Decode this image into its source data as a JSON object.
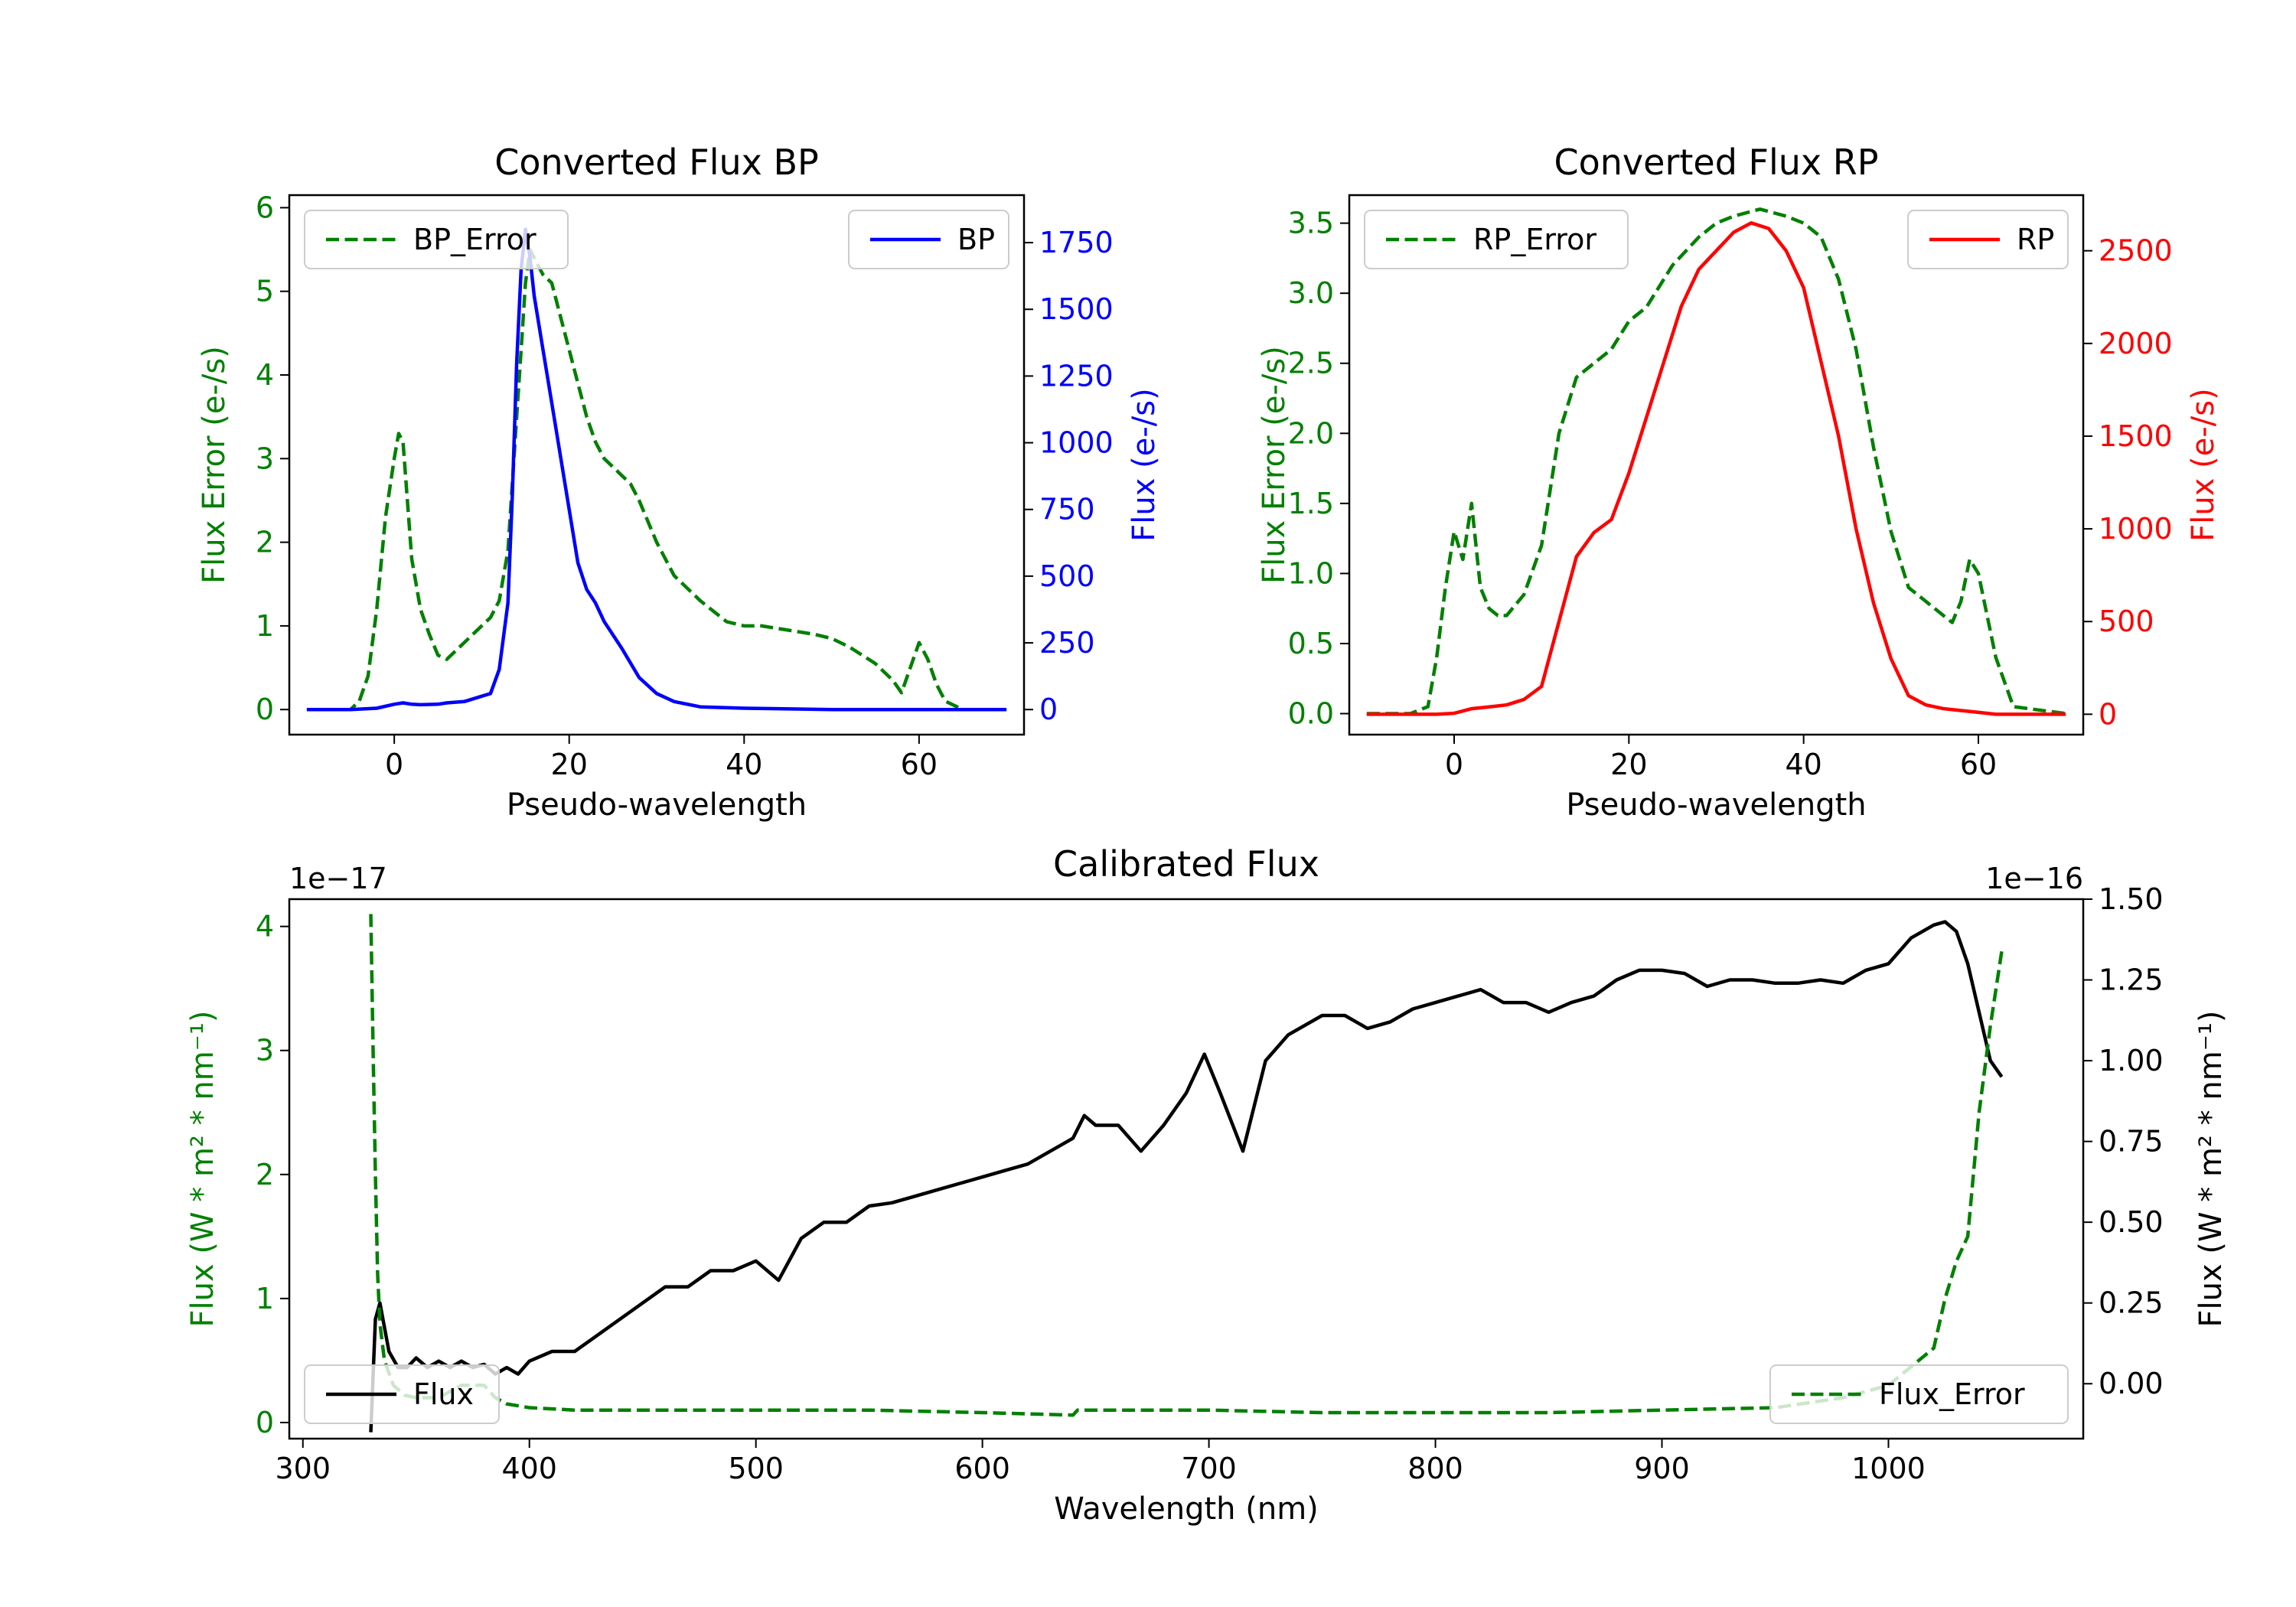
{
  "chart_data": [
    {
      "type": "line",
      "title": "Converted Flux BP",
      "xlabel": "Pseudo-wavelength",
      "xlim": [
        -12,
        72
      ],
      "xticks": [
        0,
        20,
        40,
        60
      ],
      "left_axis": {
        "label": "Flux Error (e-/s)",
        "color": "#008000",
        "ylim": [
          -0.3,
          6.15
        ],
        "ticks": [
          0,
          1,
          2,
          3,
          4,
          5,
          6
        ]
      },
      "right_axis": {
        "label": "Flux (e-/s)",
        "color": "#0000ff",
        "ylim": [
          -94,
          1928
        ],
        "ticks": [
          0,
          250,
          500,
          750,
          1000,
          1250,
          1500,
          1750
        ]
      },
      "series": [
        {
          "name": "BP_Error",
          "axis": "left",
          "color": "#008000",
          "dashed": true,
          "x": [
            -10,
            -5,
            -4,
            -3,
            -2,
            -1,
            0,
            0.5,
            1,
            1.5,
            2,
            2.5,
            3,
            4,
            5,
            6,
            7,
            8,
            9,
            10,
            11,
            12,
            13,
            14,
            14.5,
            15,
            15.5,
            16,
            17,
            18,
            19,
            20,
            21,
            22,
            23,
            24,
            25,
            26,
            27,
            28,
            30,
            32,
            35,
            38,
            40,
            42,
            45,
            48,
            50,
            52,
            55,
            57,
            58,
            59,
            60,
            61,
            62,
            63,
            65,
            70
          ],
          "y": [
            0,
            0,
            0.1,
            0.4,
            1.2,
            2.3,
            3.0,
            3.3,
            3.2,
            2.5,
            1.8,
            1.5,
            1.2,
            0.9,
            0.65,
            0.6,
            0.7,
            0.8,
            0.9,
            1.0,
            1.1,
            1.3,
            1.9,
            3.5,
            4.3,
            5.1,
            5.5,
            5.4,
            5.2,
            5.1,
            4.7,
            4.3,
            3.9,
            3.5,
            3.2,
            3.0,
            2.9,
            2.8,
            2.7,
            2.5,
            2.0,
            1.6,
            1.3,
            1.05,
            1.0,
            1.0,
            0.95,
            0.9,
            0.85,
            0.75,
            0.55,
            0.35,
            0.2,
            0.5,
            0.8,
            0.6,
            0.3,
            0.1,
            0.0,
            0.0
          ]
        },
        {
          "name": "BP",
          "axis": "right",
          "color": "#0000ff",
          "dashed": false,
          "x": [
            -10,
            -5,
            -2,
            0,
            1,
            2,
            3,
            5,
            6,
            8,
            10,
            11,
            12,
            13,
            13.5,
            14,
            14.5,
            15,
            15.5,
            16,
            17,
            18,
            19,
            20,
            21,
            22,
            23,
            24,
            26,
            28,
            30,
            32,
            35,
            40,
            50,
            60,
            70
          ],
          "y": [
            0,
            0,
            5,
            20,
            25,
            20,
            18,
            20,
            25,
            30,
            50,
            60,
            150,
            400,
            800,
            1300,
            1650,
            1800,
            1700,
            1550,
            1350,
            1150,
            950,
            750,
            550,
            450,
            400,
            330,
            230,
            120,
            60,
            30,
            10,
            5,
            0,
            0,
            0
          ]
        }
      ],
      "legend": [
        {
          "label": "BP_Error",
          "placement": "upper-left"
        },
        {
          "label": "BP",
          "placement": "upper-right"
        }
      ]
    },
    {
      "type": "line",
      "title": "Converted Flux RP",
      "xlabel": "Pseudo-wavelength",
      "xlim": [
        -12,
        72
      ],
      "xticks": [
        0,
        20,
        40,
        60
      ],
      "left_axis": {
        "label": "Flux Error (e-/s)",
        "color": "#008000",
        "ylim": [
          -0.15,
          3.7
        ],
        "ticks": [
          0.0,
          0.5,
          1.0,
          1.5,
          2.0,
          2.5,
          3.0,
          3.5
        ]
      },
      "right_axis": {
        "label": "Flux (e-/s)",
        "color": "#ff0000",
        "ylim": [
          -110,
          2800
        ],
        "ticks": [
          0,
          500,
          1000,
          1500,
          2000,
          2500
        ]
      },
      "series": [
        {
          "name": "RP_Error",
          "axis": "left",
          "color": "#008000",
          "dashed": true,
          "x": [
            -10,
            -5,
            -3,
            -2,
            -1,
            0,
            1,
            2,
            3,
            4,
            5,
            6,
            8,
            10,
            12,
            14,
            16,
            18,
            20,
            22,
            25,
            28,
            30,
            32,
            35,
            38,
            40,
            42,
            44,
            46,
            48,
            50,
            52,
            54,
            56,
            57,
            58,
            59,
            60,
            62,
            64,
            70
          ],
          "y": [
            0,
            0,
            0.05,
            0.4,
            0.9,
            1.3,
            1.1,
            1.5,
            0.9,
            0.75,
            0.7,
            0.7,
            0.85,
            1.2,
            2.0,
            2.4,
            2.5,
            2.6,
            2.8,
            2.9,
            3.2,
            3.4,
            3.5,
            3.55,
            3.6,
            3.55,
            3.5,
            3.4,
            3.1,
            2.6,
            1.9,
            1.3,
            0.9,
            0.8,
            0.7,
            0.65,
            0.8,
            1.1,
            1.0,
            0.4,
            0.05,
            0.0
          ]
        },
        {
          "name": "RP",
          "axis": "right",
          "color": "#ff0000",
          "dashed": false,
          "x": [
            -10,
            -2,
            0,
            2,
            4,
            6,
            8,
            10,
            12,
            14,
            16,
            18,
            20,
            22,
            24,
            26,
            28,
            30,
            32,
            34,
            36,
            38,
            40,
            42,
            44,
            46,
            48,
            50,
            52,
            54,
            56,
            58,
            60,
            62,
            65,
            70
          ],
          "y": [
            0,
            0,
            5,
            30,
            40,
            50,
            80,
            150,
            500,
            850,
            980,
            1050,
            1300,
            1600,
            1900,
            2200,
            2400,
            2500,
            2600,
            2650,
            2620,
            2500,
            2300,
            1900,
            1500,
            1000,
            600,
            300,
            100,
            50,
            30,
            20,
            10,
            0,
            0,
            0
          ]
        }
      ],
      "legend": [
        {
          "label": "RP_Error",
          "placement": "upper-left"
        },
        {
          "label": "RP",
          "placement": "upper-right"
        }
      ]
    },
    {
      "type": "line",
      "title": "Calibrated Flux",
      "xlabel": "Wavelength (nm)",
      "xlim": [
        294,
        1086
      ],
      "xticks": [
        300,
        400,
        500,
        600,
        700,
        800,
        900,
        1000
      ],
      "left_axis": {
        "label": "Flux (W * m^2 * nm^-1)",
        "label_display": "Flux (W * m² * nm⁻¹)",
        "color": "#008000",
        "offset_text": "1e−17",
        "ylim": [
          -0.13,
          4.22
        ],
        "ticks": [
          0,
          1,
          2,
          3,
          4
        ]
      },
      "right_axis": {
        "label": "Flux (W * m^2 * nm^-1)",
        "label_display": "Flux (W * m² * nm⁻¹)",
        "color": "#000000",
        "offset_text": "1e−16",
        "ylim": [
          -0.17,
          1.5
        ],
        "ticks": [
          0.0,
          0.25,
          0.5,
          0.75,
          1.0,
          1.25,
          1.5
        ]
      },
      "series": [
        {
          "name": "Flux",
          "axis": "right",
          "color": "#000000",
          "dashed": false,
          "x": [
            330,
            332,
            334,
            338,
            342,
            346,
            350,
            355,
            360,
            365,
            370,
            375,
            380,
            385,
            390,
            395,
            400,
            410,
            420,
            430,
            440,
            450,
            460,
            470,
            480,
            490,
            500,
            510,
            520,
            530,
            540,
            550,
            560,
            570,
            580,
            590,
            600,
            610,
            620,
            630,
            640,
            645,
            650,
            660,
            670,
            680,
            690,
            698,
            705,
            715,
            725,
            735,
            750,
            760,
            770,
            780,
            790,
            800,
            810,
            820,
            830,
            840,
            850,
            860,
            870,
            880,
            890,
            900,
            910,
            920,
            930,
            940,
            950,
            960,
            970,
            980,
            990,
            1000,
            1010,
            1020,
            1025,
            1030,
            1035,
            1040,
            1045,
            1050
          ],
          "y": [
            -0.15,
            0.2,
            0.25,
            0.1,
            0.05,
            0.05,
            0.08,
            0.05,
            0.07,
            0.05,
            0.07,
            0.05,
            0.06,
            0.03,
            0.05,
            0.03,
            0.07,
            0.1,
            0.1,
            0.15,
            0.2,
            0.25,
            0.3,
            0.3,
            0.35,
            0.35,
            0.38,
            0.32,
            0.45,
            0.5,
            0.5,
            0.55,
            0.56,
            0.58,
            0.6,
            0.62,
            0.64,
            0.66,
            0.68,
            0.72,
            0.76,
            0.83,
            0.8,
            0.8,
            0.72,
            0.8,
            0.9,
            1.02,
            0.9,
            0.72,
            1.0,
            1.08,
            1.14,
            1.14,
            1.1,
            1.12,
            1.16,
            1.18,
            1.2,
            1.22,
            1.18,
            1.18,
            1.15,
            1.18,
            1.2,
            1.25,
            1.28,
            1.28,
            1.27,
            1.23,
            1.25,
            1.25,
            1.24,
            1.24,
            1.25,
            1.24,
            1.28,
            1.3,
            1.38,
            1.42,
            1.43,
            1.4,
            1.3,
            1.15,
            1.0,
            0.95
          ]
        },
        {
          "name": "Flux_Error",
          "axis": "left",
          "color": "#008000",
          "dashed": true,
          "x": [
            330,
            331,
            332,
            333,
            334,
            336,
            340,
            345,
            350,
            360,
            370,
            380,
            385,
            390,
            400,
            420,
            450,
            500,
            550,
            600,
            640,
            642,
            650,
            700,
            750,
            800,
            850,
            900,
            950,
            980,
            1000,
            1010,
            1020,
            1025,
            1030,
            1035,
            1040,
            1045,
            1050
          ],
          "y": [
            4.1,
            3.0,
            2.0,
            1.2,
            0.8,
            0.5,
            0.3,
            0.22,
            0.2,
            0.2,
            0.3,
            0.3,
            0.2,
            0.15,
            0.12,
            0.1,
            0.1,
            0.1,
            0.1,
            0.08,
            0.06,
            0.1,
            0.1,
            0.1,
            0.08,
            0.08,
            0.08,
            0.1,
            0.12,
            0.2,
            0.3,
            0.45,
            0.6,
            1.0,
            1.3,
            1.5,
            2.5,
            3.2,
            3.8
          ]
        }
      ],
      "legend": [
        {
          "label": "Flux",
          "placement": "lower-left"
        },
        {
          "label": "Flux_Error",
          "placement": "lower-right"
        }
      ]
    }
  ]
}
